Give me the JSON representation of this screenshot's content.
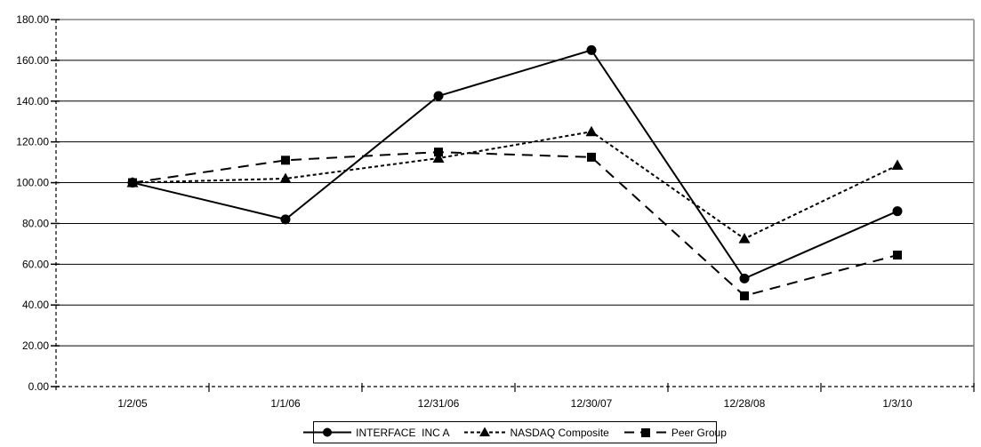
{
  "chart_data": {
    "type": "line",
    "title": "",
    "categories": [
      "1/2/05",
      "1/1/06",
      "12/31/06",
      "12/30/07",
      "12/28/08",
      "1/3/10"
    ],
    "series": [
      {
        "name": "INTERFACE  INC A",
        "values": [
          100,
          82,
          142.5,
          165,
          53,
          86
        ],
        "line_style": "solid",
        "marker": "circle"
      },
      {
        "name": "NASDAQ Composite",
        "values": [
          100,
          102,
          112,
          125,
          72.5,
          108.5
        ],
        "line_style": "short-dash",
        "marker": "triangle"
      },
      {
        "name": "Peer Group",
        "values": [
          100,
          111,
          115,
          112.5,
          44.5,
          64.5
        ],
        "line_style": "long-dash",
        "marker": "square"
      }
    ],
    "ylim": [
      0,
      180
    ],
    "y_tick_step": 20,
    "y_tick_labels": [
      "0.00",
      "20.00",
      "40.00",
      "60.00",
      "80.00",
      "100.00",
      "120.00",
      "140.00",
      "160.00",
      "180.00"
    ],
    "grid": "horizontal-on",
    "legend_position": "bottom-center"
  },
  "colors": {
    "series_line": "#000000",
    "gridline": "#000000",
    "plot_border": "#848484",
    "axis": "#000000",
    "text": "#000000",
    "background": "#ffffff"
  }
}
